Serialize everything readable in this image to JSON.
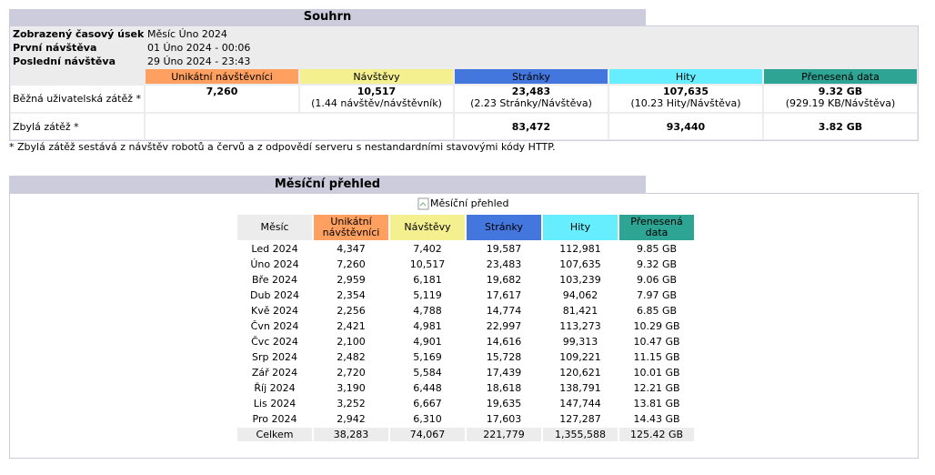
{
  "summary": {
    "title": "Souhrn",
    "info": [
      [
        "Zobrazený časový úsek",
        "Měsíc Úno 2024"
      ],
      [
        "První návštěva",
        "01 Úno 2024 - 00:06"
      ],
      [
        "Poslední návštěva",
        "29 Úno 2024 - 23:43"
      ]
    ],
    "columns": [
      "Unikátní návštěvníci",
      "Návštěvy",
      "Stránky",
      "Hity",
      "Přenesená data"
    ],
    "traffic": {
      "label": "Běžná uživatelská zátěž *",
      "values": [
        "7,260",
        "10,517",
        "23,483",
        "107,635",
        "9.32 GB"
      ],
      "notes": [
        "(1.44 návštěv/návštěvník)",
        "(2.23 Stránky/Návštěva)",
        "(10.23 Hity/Návštěva)",
        "(929.19 KB/Návštěva)"
      ]
    },
    "other": {
      "label": "Zbylá zátěž *",
      "values": [
        "83,472",
        "93,440",
        "3.82 GB"
      ]
    },
    "footnote": "* Zbylá zátěž sestává z návštěv robotů a červů a z odpovědí serveru s nestandardními stavovými kódy HTTP."
  },
  "monthly": {
    "title": "Měsíční přehled",
    "image_alt": "Měsíční přehled",
    "columns": [
      "Měsíc",
      "Unikátní návštěvníci",
      "Návštěvy",
      "Stránky",
      "Hity",
      "Přenesená data"
    ],
    "rows": [
      [
        "Led 2024",
        "4,347",
        "7,402",
        "19,587",
        "112,981",
        "9.85 GB"
      ],
      [
        "Úno 2024",
        "7,260",
        "10,517",
        "23,483",
        "107,635",
        "9.32 GB"
      ],
      [
        "Bře 2024",
        "2,959",
        "6,181",
        "19,682",
        "103,239",
        "9.06 GB"
      ],
      [
        "Dub 2024",
        "2,354",
        "5,119",
        "17,617",
        "94,062",
        "7.97 GB"
      ],
      [
        "Kvě 2024",
        "2,256",
        "4,788",
        "14,774",
        "81,421",
        "6.85 GB"
      ],
      [
        "Čvn 2024",
        "2,421",
        "4,981",
        "22,997",
        "113,273",
        "10.29 GB"
      ],
      [
        "Čvc 2024",
        "2,100",
        "4,901",
        "14,616",
        "99,313",
        "10.47 GB"
      ],
      [
        "Srp 2024",
        "2,482",
        "5,169",
        "15,728",
        "109,221",
        "11.15 GB"
      ],
      [
        "Zář 2024",
        "2,720",
        "5,584",
        "17,439",
        "120,621",
        "10.01 GB"
      ],
      [
        "Říj 2024",
        "3,190",
        "6,448",
        "18,618",
        "138,791",
        "12.21 GB"
      ],
      [
        "Lis 2024",
        "3,252",
        "6,667",
        "19,635",
        "147,744",
        "13.81 GB"
      ],
      [
        "Pro 2024",
        "2,942",
        "6,310",
        "17,603",
        "127,287",
        "14.43 GB"
      ]
    ],
    "total": [
      "Celkem",
      "38,283",
      "74,067",
      "221,779",
      "1,355,588",
      "125.42 GB"
    ]
  }
}
